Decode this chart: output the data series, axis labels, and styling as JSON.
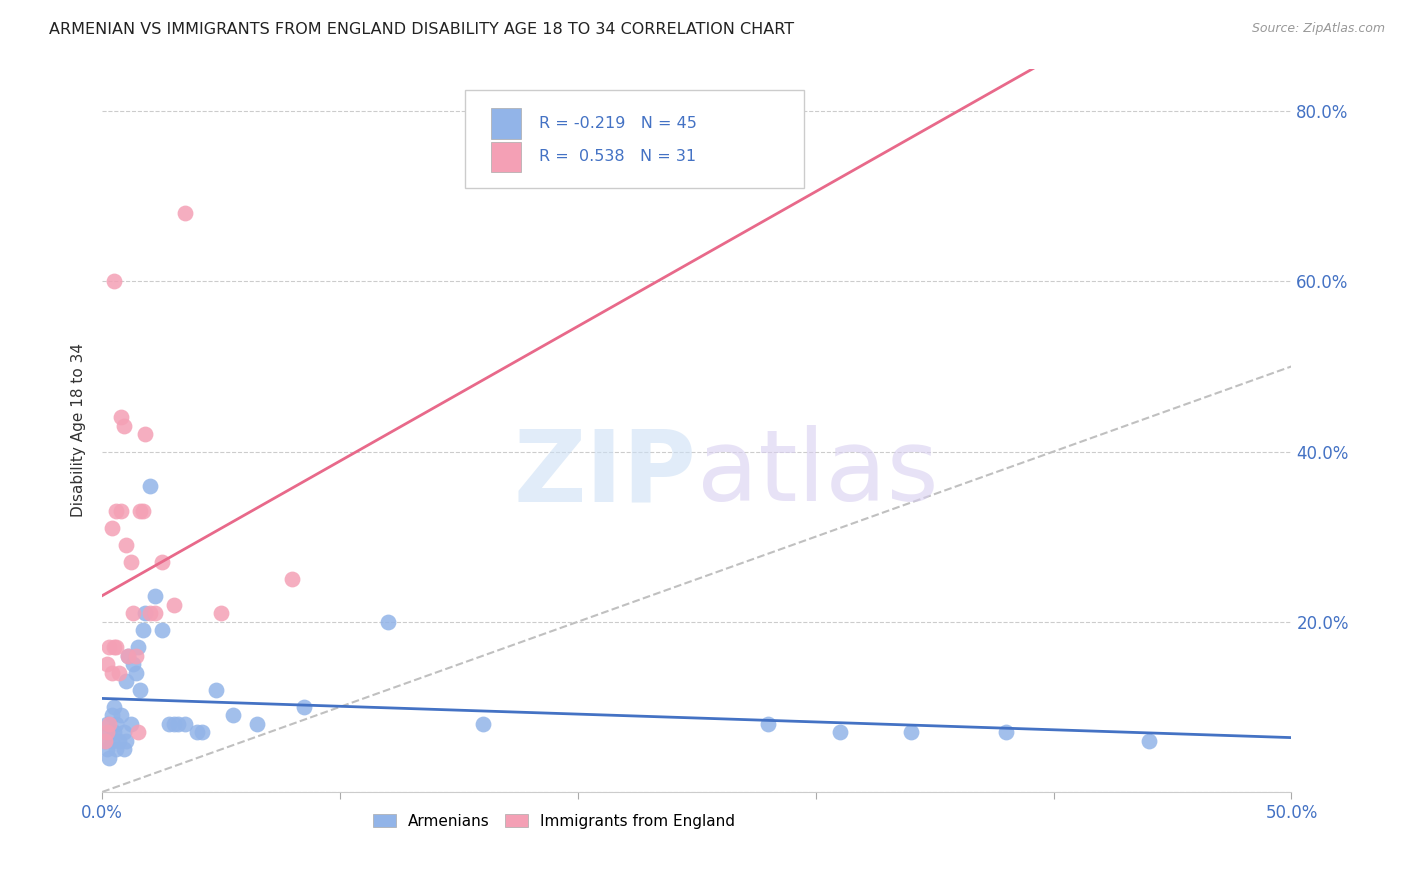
{
  "title": "ARMENIAN VS IMMIGRANTS FROM ENGLAND DISABILITY AGE 18 TO 34 CORRELATION CHART",
  "source": "Source: ZipAtlas.com",
  "ylabel": "Disability Age 18 to 34",
  "xlim": [
    0.0,
    0.5
  ],
  "ylim": [
    0.0,
    0.85
  ],
  "yticks": [
    0.0,
    0.2,
    0.4,
    0.6,
    0.8
  ],
  "ytick_labels": [
    "",
    "20.0%",
    "40.0%",
    "60.0%",
    "80.0%"
  ],
  "xtick_labels_show": [
    "0.0%",
    "50.0%"
  ],
  "title_color": "#222222",
  "axis_tick_color": "#4472c4",
  "grid_color": "#cccccc",
  "armenian_color": "#92b4e8",
  "england_color": "#f4a0b5",
  "armenian_line_color": "#4472c4",
  "england_line_color": "#e8698a",
  "diagonal_color": "#c0c0c0",
  "legend_armenian_label": "Armenians",
  "legend_england_label": "Immigrants from England",
  "armenians_x": [
    0.001,
    0.002,
    0.002,
    0.003,
    0.003,
    0.004,
    0.004,
    0.005,
    0.005,
    0.006,
    0.006,
    0.007,
    0.008,
    0.009,
    0.009,
    0.01,
    0.01,
    0.011,
    0.012,
    0.013,
    0.014,
    0.015,
    0.016,
    0.017,
    0.018,
    0.02,
    0.022,
    0.025,
    0.028,
    0.03,
    0.032,
    0.035,
    0.04,
    0.042,
    0.048,
    0.055,
    0.065,
    0.085,
    0.12,
    0.16,
    0.28,
    0.31,
    0.34,
    0.38,
    0.44
  ],
  "armenians_y": [
    0.06,
    0.05,
    0.08,
    0.04,
    0.07,
    0.09,
    0.06,
    0.1,
    0.07,
    0.05,
    0.08,
    0.06,
    0.09,
    0.07,
    0.05,
    0.13,
    0.06,
    0.16,
    0.08,
    0.15,
    0.14,
    0.17,
    0.12,
    0.19,
    0.21,
    0.36,
    0.23,
    0.19,
    0.08,
    0.08,
    0.08,
    0.08,
    0.07,
    0.07,
    0.12,
    0.09,
    0.08,
    0.1,
    0.2,
    0.08,
    0.08,
    0.07,
    0.07,
    0.07,
    0.06
  ],
  "england_x": [
    0.001,
    0.002,
    0.002,
    0.003,
    0.003,
    0.004,
    0.004,
    0.005,
    0.005,
    0.006,
    0.006,
    0.007,
    0.008,
    0.008,
    0.009,
    0.01,
    0.011,
    0.012,
    0.013,
    0.014,
    0.015,
    0.016,
    0.017,
    0.018,
    0.02,
    0.022,
    0.025,
    0.03,
    0.035,
    0.05,
    0.08
  ],
  "england_y": [
    0.06,
    0.07,
    0.15,
    0.08,
    0.17,
    0.14,
    0.31,
    0.6,
    0.17,
    0.17,
    0.33,
    0.14,
    0.44,
    0.33,
    0.43,
    0.29,
    0.16,
    0.27,
    0.21,
    0.16,
    0.07,
    0.33,
    0.33,
    0.42,
    0.21,
    0.21,
    0.27,
    0.22,
    0.68,
    0.21,
    0.25
  ]
}
